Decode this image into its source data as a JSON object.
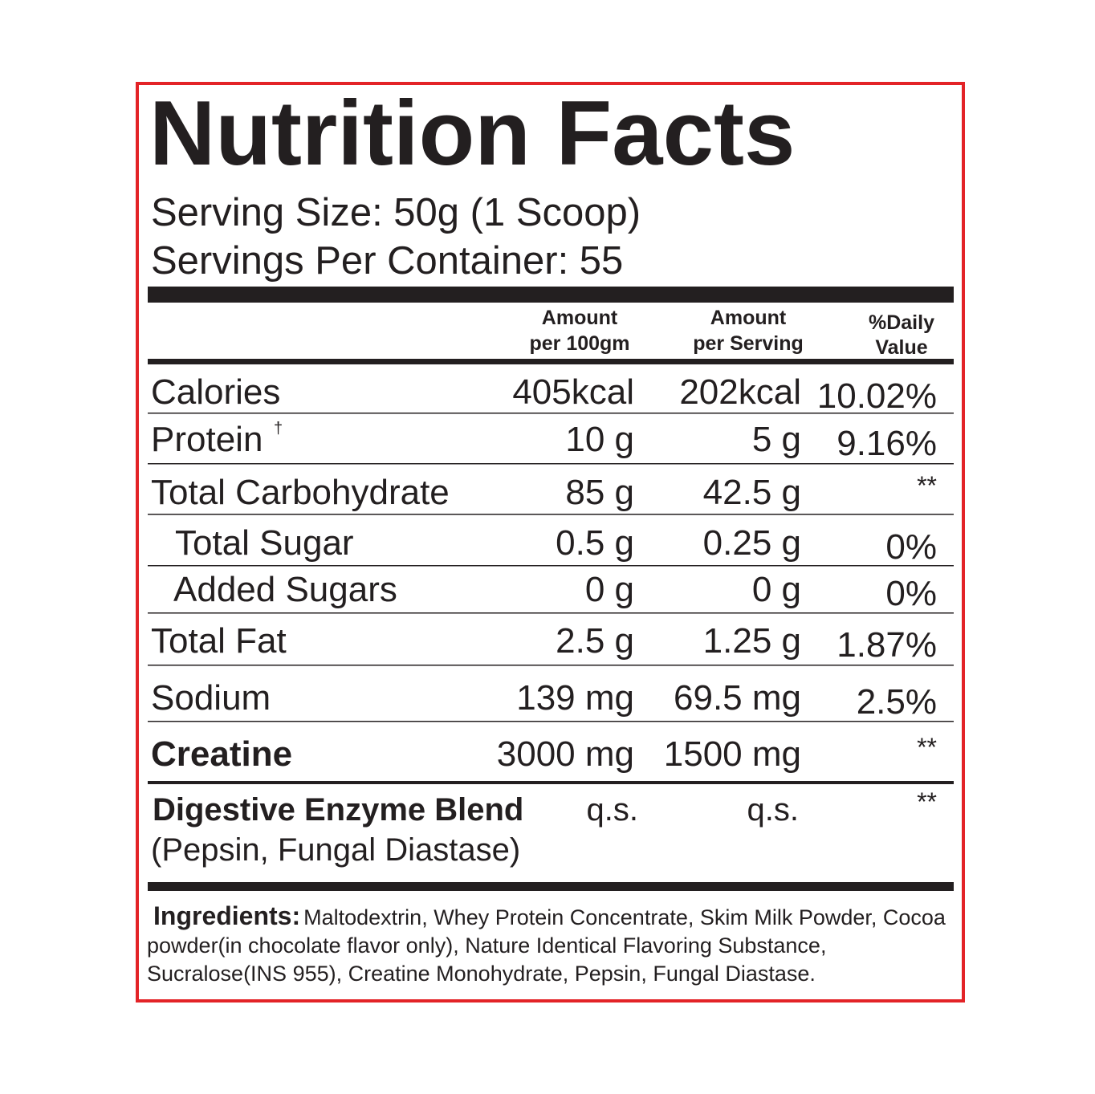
{
  "title": "Nutrition Facts",
  "serving_size": "Serving Size: 50g (1 Scoop)",
  "servings_per_container": "Servings Per Container: 55",
  "table": {
    "columns": [
      [
        "Amount",
        "per 100gm"
      ],
      [
        "Amount",
        "per Serving"
      ],
      [
        "%Daily",
        "Value"
      ]
    ],
    "rows": [
      {
        "name": "Calories",
        "per_100g": "405kcal",
        "per_serving": "202kcal",
        "daily_value": "10.02%"
      },
      {
        "name": "Protein",
        "note": "†",
        "per_100g": "10 g",
        "per_serving": "5 g",
        "daily_value": "9.16%"
      },
      {
        "name": "Total Carbohydrate",
        "per_100g": "85 g",
        "per_serving": "42.5 g",
        "daily_value": "**"
      },
      {
        "name": "Total Sugar",
        "per_100g": "0.5 g",
        "per_serving": "0.25 g",
        "daily_value": "0%"
      },
      {
        "name": "Added Sugars",
        "per_100g": "0 g",
        "per_serving": "0 g",
        "daily_value": "0%"
      },
      {
        "name": "Total Fat",
        "per_100g": "2.5 g",
        "per_serving": "1.25 g",
        "daily_value": "1.87%"
      },
      {
        "name": "Sodium",
        "per_100g": "139 mg",
        "per_serving": "69.5 mg",
        "daily_value": "2.5%"
      },
      {
        "name": "Creatine",
        "per_100g": "3000 mg",
        "per_serving": "1500 mg",
        "daily_value": "**"
      },
      {
        "name": "Digestive Enzyme Blend",
        "detail": "(Pepsin, Fungal Diastase)",
        "per_100g": "q.s.",
        "per_serving": "q.s.",
        "daily_value": "**"
      }
    ]
  },
  "ingredients": {
    "label": "Ingredients:",
    "text": "Maltodextrin, Whey Protein Concentrate, Skim Milk Powder, Cocoa powder(in chocolate flavor only), Nature Identical Flavoring Substance, Sucralose(INS 955), Creatine Monohydrate, Pepsin, Fungal Diastase."
  }
}
